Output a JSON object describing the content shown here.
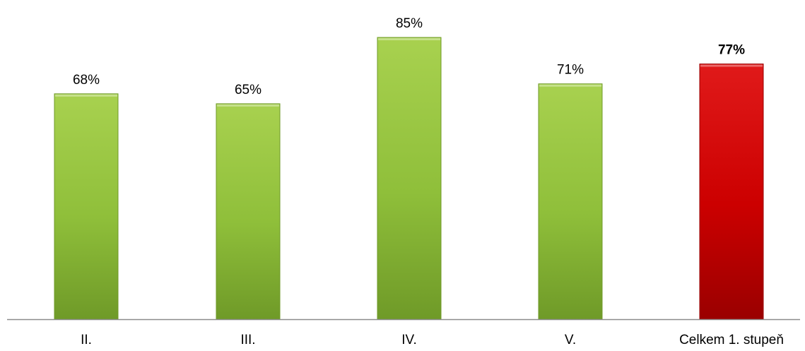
{
  "chart_data": {
    "type": "bar",
    "categories": [
      "II.",
      "III.",
      "IV.",
      "V.",
      "Celkem 1. stupeň"
    ],
    "values": [
      68,
      65,
      85,
      71,
      77
    ],
    "value_labels": [
      "68%",
      "65%",
      "85%",
      "71%",
      "77%"
    ],
    "highlight_index": 4,
    "colors": {
      "bar": "#8fbf3a",
      "bar_light": "#a8d14f",
      "bar_dark": "#6f9a28",
      "highlight": "#cc0000",
      "highlight_light": "#e01a1a",
      "highlight_dark": "#9a0000",
      "axis": "#8c8c8c",
      "text": "#000000"
    },
    "ylim": [
      0,
      100
    ],
    "grid": false,
    "legend": "none"
  }
}
